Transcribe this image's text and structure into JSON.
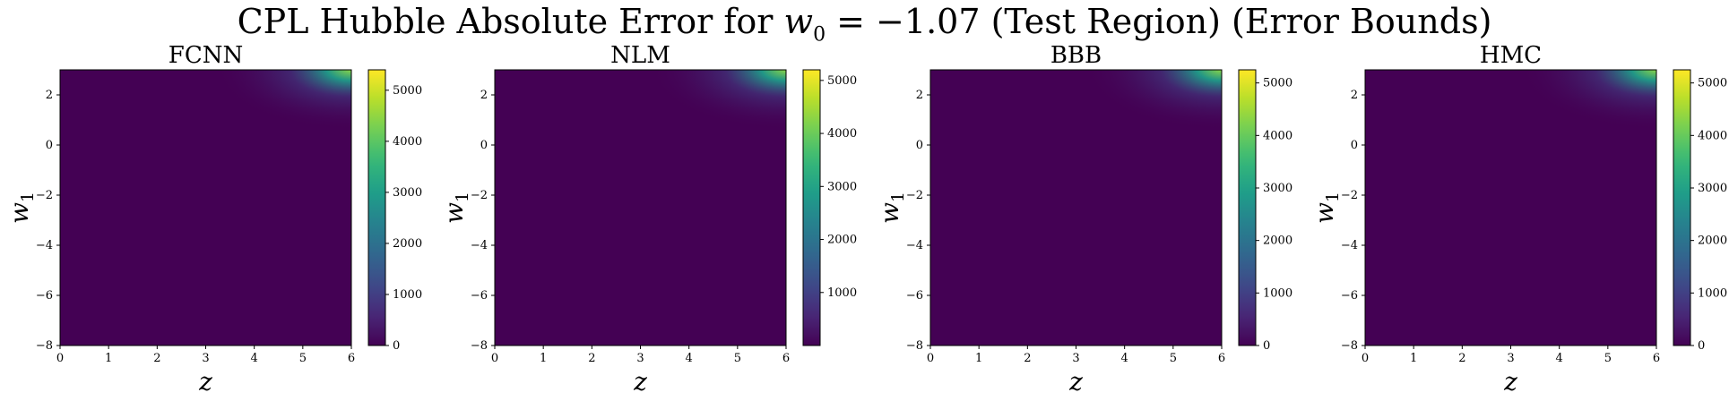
{
  "figure": {
    "title": "CPL Hubble Absolute Error for w0 = −1.07 (Test Region) (Error Bounds)"
  },
  "chart_data": [
    {
      "type": "heatmap",
      "title": "FCNN",
      "xlabel": "z",
      "ylabel": "w1",
      "xlim": [
        0,
        6
      ],
      "ylim": [
        -8,
        3
      ],
      "xticks": [
        0,
        1,
        2,
        3,
        4,
        5,
        6
      ],
      "yticks": [
        2,
        0,
        -2,
        -4,
        -6,
        -8
      ],
      "colorbar": {
        "min": 0,
        "max": 5400,
        "ticks": [
          0,
          1000,
          2000,
          3000,
          4000,
          5000
        ]
      }
    },
    {
      "type": "heatmap",
      "title": "NLM",
      "xlabel": "z",
      "ylabel": "w1",
      "xlim": [
        0,
        6
      ],
      "ylim": [
        -8,
        3
      ],
      "xticks": [
        0,
        1,
        2,
        3,
        4,
        5,
        6
      ],
      "yticks": [
        2,
        0,
        -2,
        -4,
        -6,
        -8
      ],
      "colorbar": {
        "min": 0,
        "max": 5200,
        "ticks": [
          1000,
          2000,
          3000,
          4000,
          5000
        ]
      }
    },
    {
      "type": "heatmap",
      "title": "BBB",
      "xlabel": "z",
      "ylabel": "w1",
      "xlim": [
        0,
        6
      ],
      "ylim": [
        -8,
        3
      ],
      "xticks": [
        0,
        1,
        2,
        3,
        4,
        5,
        6
      ],
      "yticks": [
        2,
        0,
        -2,
        -4,
        -6,
        -8
      ],
      "colorbar": {
        "min": 0,
        "max": 5250,
        "ticks": [
          0,
          1000,
          2000,
          3000,
          4000,
          5000
        ]
      }
    },
    {
      "type": "heatmap",
      "title": "HMC",
      "xlabel": "z",
      "ylabel": "w1",
      "xlim": [
        0,
        6
      ],
      "ylim": [
        -8,
        3
      ],
      "xticks": [
        0,
        1,
        2,
        3,
        4,
        5,
        6
      ],
      "yticks": [
        2,
        0,
        -2,
        -4,
        -6,
        -8
      ],
      "colorbar": {
        "min": 0,
        "max": 5250,
        "ticks": [
          0,
          1000,
          2000,
          3000,
          4000,
          5000
        ]
      }
    }
  ]
}
